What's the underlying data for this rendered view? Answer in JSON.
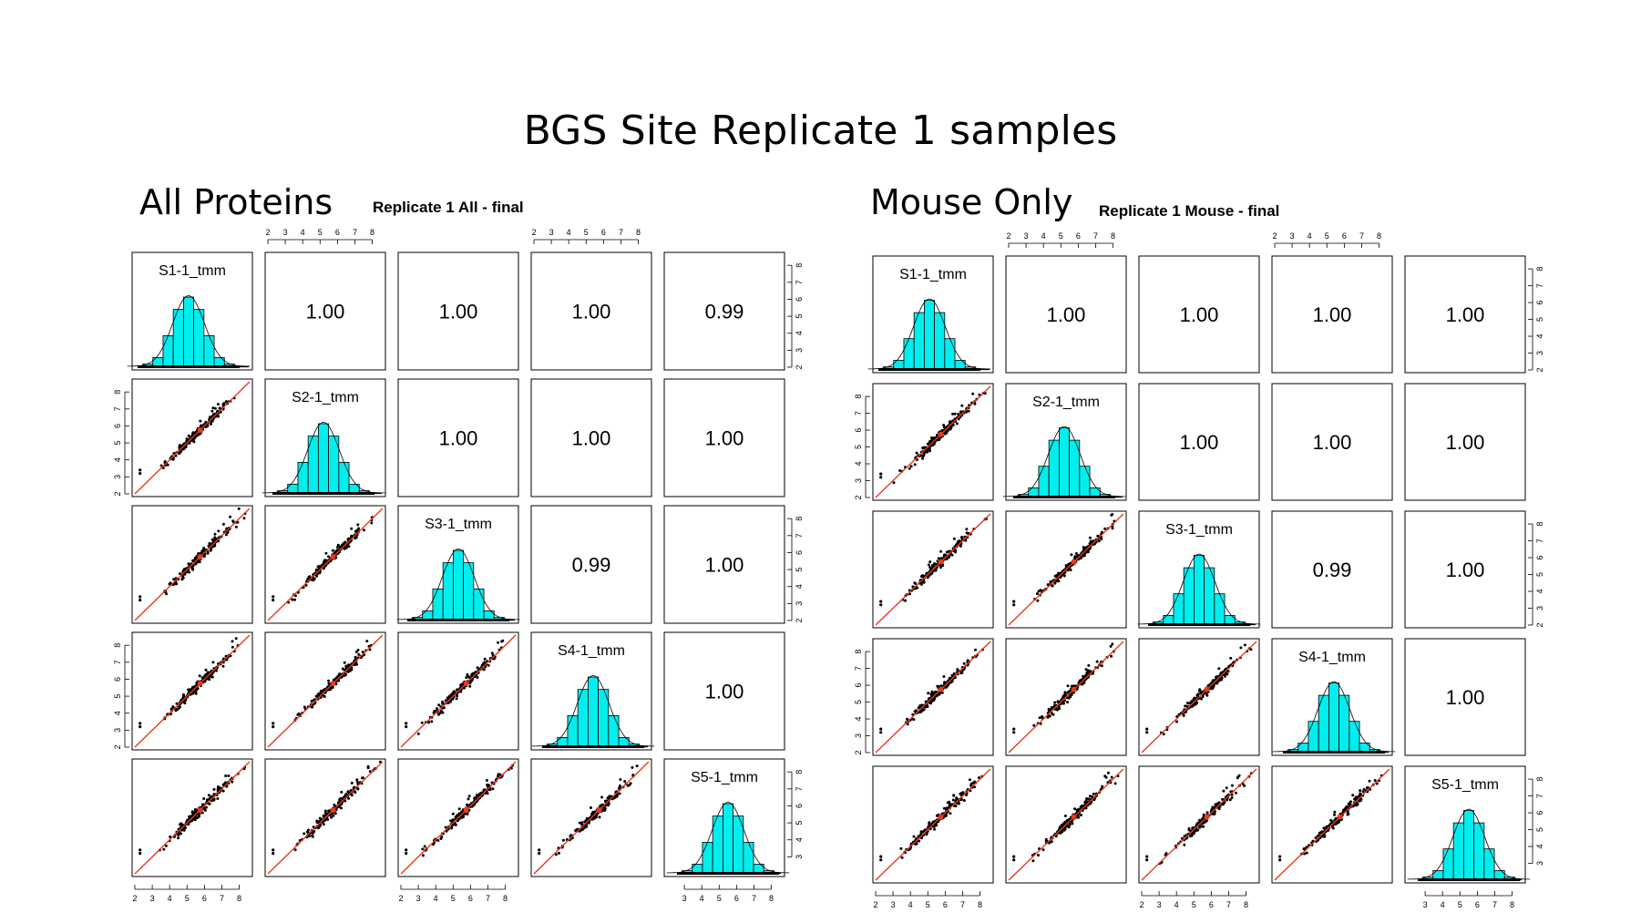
{
  "slide": {
    "title": "BGS Site Replicate 1 samples"
  },
  "chart_data": [
    {
      "type": "scatter",
      "panel_heading": "All Proteins",
      "title": "Replicate 1 All - final",
      "variables": [
        "S1-1_tmm",
        "S2-1_tmm",
        "S3-1_tmm",
        "S4-1_tmm",
        "S5-1_tmm"
      ],
      "correlations": {
        "S1-S2": "1.00",
        "S1-S3": "1.00",
        "S1-S4": "1.00",
        "S1-S5": "0.99",
        "S2-S3": "1.00",
        "S2-S4": "1.00",
        "S2-S5": "1.00",
        "S3-S4": "0.99",
        "S3-S5": "1.00",
        "S4-S5": "1.00"
      },
      "matrix": [
        [
          "diag",
          "1.00",
          "1.00",
          "1.00",
          "0.99"
        ],
        [
          "scatter",
          "diag",
          "1.00",
          "1.00",
          "1.00"
        ],
        [
          "scatter",
          "scatter",
          "diag",
          "0.99",
          "1.00"
        ],
        [
          "scatter",
          "scatter",
          "scatter",
          "diag",
          "1.00"
        ],
        [
          "scatter",
          "scatter",
          "scatter",
          "scatter",
          "diag"
        ]
      ],
      "axis_ticks_2_8": [
        "2",
        "3",
        "4",
        "5",
        "6",
        "7",
        "8"
      ],
      "axis_ticks_3_8": [
        "3",
        "4",
        "5",
        "6",
        "7",
        "8"
      ],
      "axis_range": [
        2,
        8.6
      ],
      "diagonal": "histogram with density curve",
      "fit_line": "y = x (red)",
      "colors": {
        "histogram": "#00eeee",
        "fit_line": "#e8391c",
        "points": "#000000",
        "centroid": "#e8391c"
      }
    },
    {
      "type": "scatter",
      "panel_heading": "Mouse Only",
      "title": "Replicate 1 Mouse - final",
      "variables": [
        "S1-1_tmm",
        "S2-1_tmm",
        "S3-1_tmm",
        "S4-1_tmm",
        "S5-1_tmm"
      ],
      "correlations": {
        "S1-S2": "1.00",
        "S1-S3": "1.00",
        "S1-S4": "1.00",
        "S1-S5": "1.00",
        "S2-S3": "1.00",
        "S2-S4": "1.00",
        "S2-S5": "1.00",
        "S3-S4": "0.99",
        "S3-S5": "1.00",
        "S4-S5": "1.00"
      },
      "matrix": [
        [
          "diag",
          "1.00",
          "1.00",
          "1.00",
          "1.00"
        ],
        [
          "scatter",
          "diag",
          "1.00",
          "1.00",
          "1.00"
        ],
        [
          "scatter",
          "scatter",
          "diag",
          "0.99",
          "1.00"
        ],
        [
          "scatter",
          "scatter",
          "scatter",
          "diag",
          "1.00"
        ],
        [
          "scatter",
          "scatter",
          "scatter",
          "scatter",
          "diag"
        ]
      ],
      "axis_ticks_2_8": [
        "2",
        "3",
        "4",
        "5",
        "6",
        "7",
        "8"
      ],
      "axis_ticks_3_8": [
        "3",
        "4",
        "5",
        "6",
        "7",
        "8"
      ],
      "axis_range": [
        2,
        8.6
      ],
      "diagonal": "histogram with density curve",
      "fit_line": "y = x (red)",
      "colors": {
        "histogram": "#00eeee",
        "fit_line": "#e8391c",
        "points": "#000000",
        "centroid": "#e8391c"
      }
    }
  ]
}
